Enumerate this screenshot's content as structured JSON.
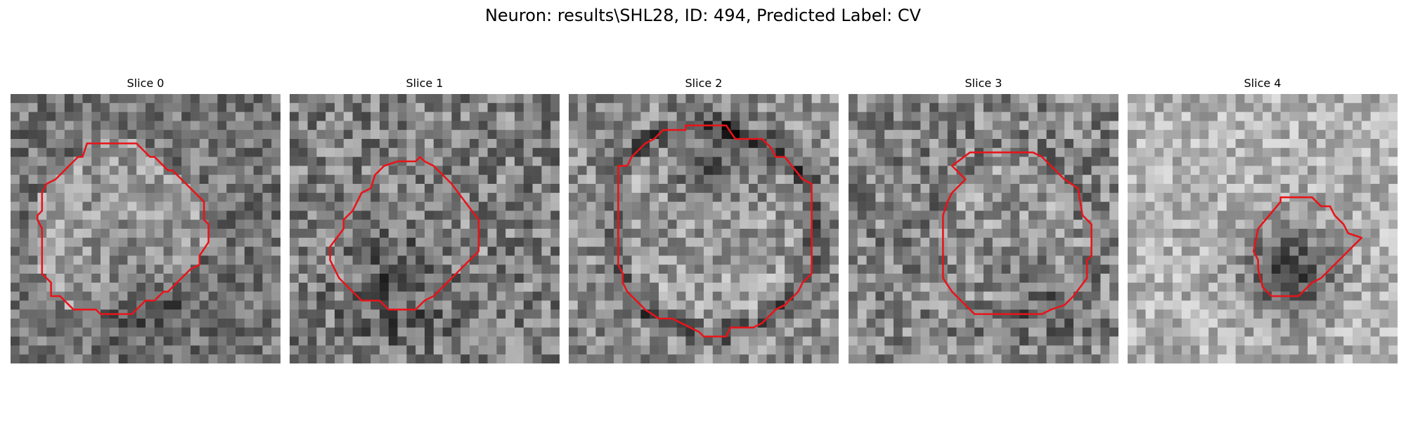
{
  "figure": {
    "suptitle": "Neuron: results\\SHL28, ID: 494, Predicted Label: CV",
    "contour_color": "#e8141a"
  },
  "panels": [
    {
      "title": "Slice 0",
      "grid_size": 30,
      "contour": [
        [
          8.5,
          5.5
        ],
        [
          14,
          5.5
        ],
        [
          15.5,
          7
        ],
        [
          16,
          7
        ],
        [
          17.5,
          8.5
        ],
        [
          18,
          8.5
        ],
        [
          21,
          11.5
        ],
        [
          21.5,
          12
        ],
        [
          21.5,
          14
        ],
        [
          22,
          14.5
        ],
        [
          22,
          16.5
        ],
        [
          21,
          18
        ],
        [
          21,
          19
        ],
        [
          20,
          19.5
        ],
        [
          17.5,
          22
        ],
        [
          17,
          22
        ],
        [
          16,
          23
        ],
        [
          15,
          23
        ],
        [
          13.5,
          24.5
        ],
        [
          10,
          24.5
        ],
        [
          9.5,
          24
        ],
        [
          7,
          24
        ],
        [
          5.5,
          22.5
        ],
        [
          4.5,
          22.5
        ],
        [
          4.5,
          21
        ],
        [
          3.5,
          20
        ],
        [
          3.5,
          15
        ],
        [
          3,
          14
        ],
        [
          3,
          13.5
        ],
        [
          3.5,
          13
        ],
        [
          3.5,
          11
        ],
        [
          4,
          10
        ],
        [
          5,
          9.5
        ],
        [
          7.5,
          7
        ],
        [
          8,
          7
        ]
      ],
      "tones": {
        "base": 0.46,
        "ring": 0.0,
        "center": 0.14,
        "dark_spot": [
          0.5,
          0.75,
          0.12,
          -0.18
        ],
        "noise": 0.2,
        "seed": 11
      }
    },
    {
      "title": "Slice 1",
      "grid_size": 30,
      "contour": [
        [
          14.5,
          7
        ],
        [
          15,
          7.5
        ],
        [
          16,
          8
        ],
        [
          18,
          10
        ],
        [
          19.5,
          12
        ],
        [
          21,
          14
        ],
        [
          21,
          17.5
        ],
        [
          20,
          18.5
        ],
        [
          19,
          19.5
        ],
        [
          17,
          21.5
        ],
        [
          16,
          22.5
        ],
        [
          15,
          23
        ],
        [
          14,
          24
        ],
        [
          12.5,
          24
        ],
        [
          11,
          24
        ],
        [
          10,
          23
        ],
        [
          8,
          23
        ],
        [
          7,
          22
        ],
        [
          5.5,
          20.5
        ],
        [
          4.5,
          18.5
        ],
        [
          4.5,
          17
        ],
        [
          6,
          15
        ],
        [
          6,
          14
        ],
        [
          7,
          13
        ],
        [
          7.5,
          12
        ],
        [
          8,
          11
        ],
        [
          9,
          10.5
        ],
        [
          9.5,
          9
        ],
        [
          10.5,
          8
        ],
        [
          12,
          7.5
        ],
        [
          14,
          7.5
        ]
      ],
      "tones": {
        "base": 0.5,
        "ring": 0.04,
        "center": 0.02,
        "dark_spot": [
          0.4,
          0.72,
          0.14,
          -0.2
        ],
        "noise": 0.24,
        "seed": 23
      }
    },
    {
      "title": "Slice 2",
      "grid_size": 30,
      "contour": [
        [
          10.5,
          4
        ],
        [
          13,
          4
        ],
        [
          13,
          3.5
        ],
        [
          17.5,
          3.5
        ],
        [
          18.5,
          5
        ],
        [
          21.5,
          5
        ],
        [
          22.5,
          6
        ],
        [
          23,
          7
        ],
        [
          24,
          7
        ],
        [
          26,
          9.5
        ],
        [
          27,
          10
        ],
        [
          27,
          20
        ],
        [
          26,
          21
        ],
        [
          25.5,
          22
        ],
        [
          24,
          23.5
        ],
        [
          23,
          24
        ],
        [
          22,
          25
        ],
        [
          21.5,
          25.5
        ],
        [
          20.5,
          26
        ],
        [
          18,
          26
        ],
        [
          17.5,
          27
        ],
        [
          15,
          27
        ],
        [
          14.5,
          26.5
        ],
        [
          13.5,
          26
        ],
        [
          11.5,
          25
        ],
        [
          10,
          25
        ],
        [
          8.5,
          24
        ],
        [
          7.5,
          23
        ],
        [
          6.5,
          22
        ],
        [
          6,
          21
        ],
        [
          6,
          20
        ],
        [
          5.5,
          19
        ],
        [
          5.5,
          17
        ],
        [
          5.5,
          8
        ],
        [
          6.5,
          8
        ],
        [
          7,
          7
        ],
        [
          8.5,
          5.5
        ],
        [
          9.5,
          5
        ]
      ],
      "tones": {
        "base": 0.55,
        "ring": -0.28,
        "center": 0.06,
        "dark_spot": [
          0.53,
          0.26,
          0.12,
          -0.22
        ],
        "noise": 0.22,
        "seed": 37
      }
    },
    {
      "title": "Slice 3",
      "grid_size": 30,
      "contour": [
        [
          13.5,
          6.5
        ],
        [
          20.5,
          6.5
        ],
        [
          21.5,
          7
        ],
        [
          24,
          9.5
        ],
        [
          25.5,
          10.5
        ],
        [
          26,
          13.5
        ],
        [
          27,
          14.5
        ],
        [
          27,
          18
        ],
        [
          26.5,
          18.5
        ],
        [
          26.5,
          20.5
        ],
        [
          25,
          22.5
        ],
        [
          24,
          23.5
        ],
        [
          22.5,
          24
        ],
        [
          21.5,
          24.5
        ],
        [
          14,
          24.5
        ],
        [
          13,
          23.5
        ],
        [
          11.5,
          22
        ],
        [
          10.5,
          20.5
        ],
        [
          10.5,
          13.5
        ],
        [
          11,
          12
        ],
        [
          11.5,
          11
        ],
        [
          12.5,
          10
        ],
        [
          13,
          9.5
        ],
        [
          11.5,
          8
        ]
      ],
      "tones": {
        "base": 0.52,
        "ring": -0.06,
        "center": 0.05,
        "dark_spot": [
          0.72,
          0.76,
          0.1,
          -0.14
        ],
        "noise": 0.24,
        "seed": 51
      }
    },
    {
      "title": "Slice 4",
      "grid_size": 30,
      "contour": [
        [
          17,
          11.5
        ],
        [
          20.5,
          11.5
        ],
        [
          21.5,
          12.5
        ],
        [
          22.5,
          12.5
        ],
        [
          23,
          13.5
        ],
        [
          24,
          14.5
        ],
        [
          24.5,
          15.5
        ],
        [
          26,
          16
        ],
        [
          24,
          18
        ],
        [
          22.5,
          19.5
        ],
        [
          21.5,
          20.5
        ],
        [
          20.5,
          21
        ],
        [
          20,
          21.5
        ],
        [
          19,
          22.5
        ],
        [
          16,
          22.5
        ],
        [
          15,
          21.5
        ],
        [
          14.5,
          19.5
        ],
        [
          14.5,
          18.5
        ],
        [
          14,
          17.5
        ],
        [
          14.5,
          15
        ],
        [
          17,
          12
        ]
      ],
      "tones": {
        "base": 0.7,
        "ring": -0.02,
        "center": 0.02,
        "dark_spot": [
          0.6,
          0.66,
          0.12,
          -0.45
        ],
        "noise": 0.18,
        "seed": 67
      }
    }
  ]
}
